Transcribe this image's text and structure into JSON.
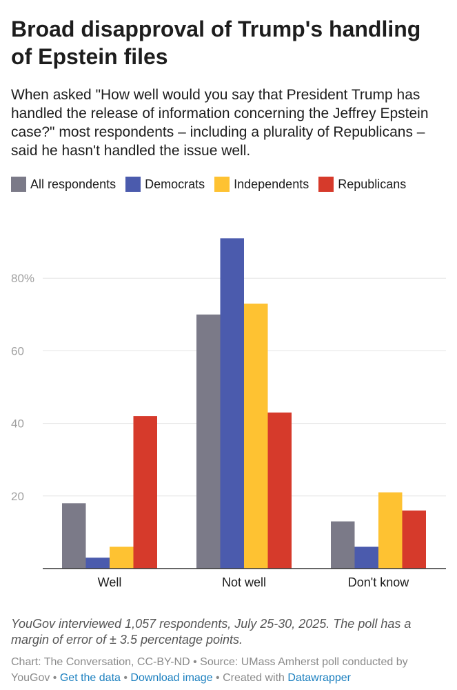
{
  "header": {
    "title": "Broad disapproval of Trump's handling of Epstein files",
    "subtitle": "When asked \"How well would you say that President Trump has handled the release of information concerning the Jeffrey Epstein case?\" most respondents – including a plurality of Republicans – said he hasn't handled the issue well."
  },
  "chart_data": {
    "type": "bar",
    "categories": [
      "Well",
      "Not well",
      "Don't know"
    ],
    "series": [
      {
        "name": "All respondents",
        "color": "#7b7a88",
        "values": [
          18,
          70,
          13
        ]
      },
      {
        "name": "Democrats",
        "color": "#4b5bad",
        "values": [
          3,
          91,
          6
        ]
      },
      {
        "name": "Independents",
        "color": "#fec232",
        "values": [
          6,
          73,
          21
        ]
      },
      {
        "name": "Republicans",
        "color": "#d63a2b",
        "values": [
          42,
          43,
          16
        ]
      }
    ],
    "yticks": [
      {
        "value": 20,
        "label": "20"
      },
      {
        "value": 40,
        "label": "40"
      },
      {
        "value": 60,
        "label": "60"
      },
      {
        "value": 80,
        "label": "80%"
      }
    ],
    "ylim": [
      0,
      95
    ],
    "grid": true,
    "xlabel": "",
    "ylabel": "",
    "legend_position": "top-left"
  },
  "notes": "YouGov interviewed 1,057 respondents, July 25-30, 2025. The poll has a margin of error of ± 3.5 percentage points.",
  "footer": {
    "credit": "Chart: The Conversation, CC-BY-ND • Source: UMass Amherst poll conducted by YouGov • ",
    "get_data_link": "Get the data",
    "separator_1": " • ",
    "download_link": "Download image",
    "separator_2": " • Created with ",
    "datawrapper_link": "Datawrapper"
  }
}
